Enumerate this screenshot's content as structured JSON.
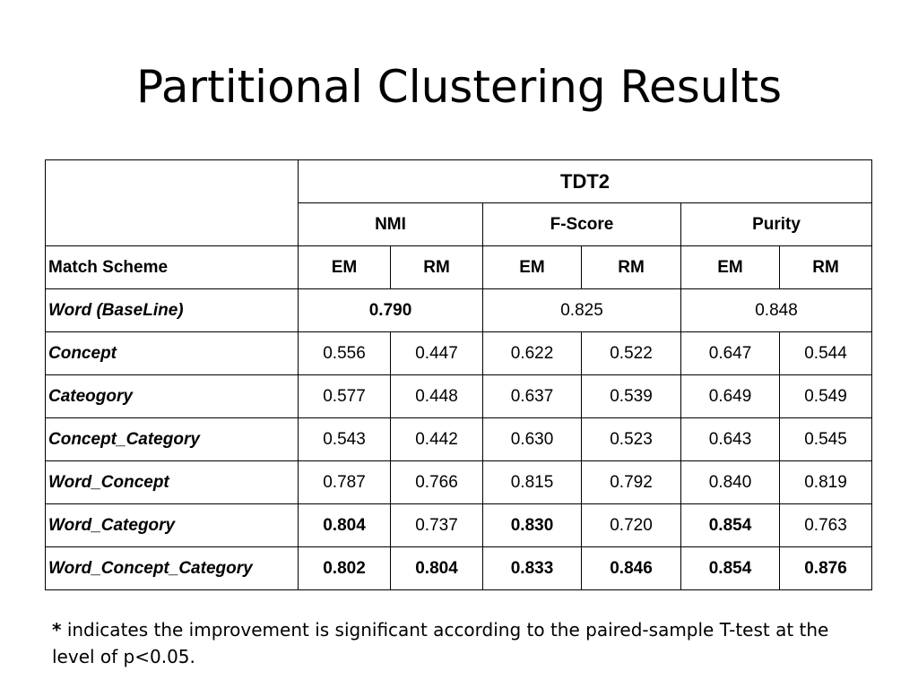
{
  "title": "Partitional Clustering Results",
  "table": {
    "dataset": "TDT2",
    "metrics": [
      "NMI",
      "F-Score",
      "Purity"
    ],
    "scheme_label": "Match Scheme",
    "subheaders": [
      "EM",
      "RM",
      "EM",
      "RM",
      "EM",
      "RM"
    ],
    "baseline": {
      "label": "Word  (BaseLine)",
      "values": [
        "0.790",
        "0.825",
        "0.848"
      ],
      "bold": [
        true,
        false,
        false
      ]
    },
    "rows": [
      {
        "label": "Concept",
        "values": [
          "0.556",
          "0.447",
          "0.622",
          "0.522",
          "0.647",
          "0.544"
        ],
        "bold": [
          false,
          false,
          false,
          false,
          false,
          false
        ]
      },
      {
        "label": "Cateogory",
        "values": [
          "0.577",
          "0.448",
          "0.637",
          "0.539",
          "0.649",
          "0.549"
        ],
        "bold": [
          false,
          false,
          false,
          false,
          false,
          false
        ]
      },
      {
        "label": "Concept_Category",
        "values": [
          "0.543",
          "0.442",
          "0.630",
          "0.523",
          "0.643",
          "0.545"
        ],
        "bold": [
          false,
          false,
          false,
          false,
          false,
          false
        ]
      },
      {
        "label": "Word_Concept",
        "values": [
          "0.787",
          "0.766",
          "0.815",
          "0.792",
          "0.840",
          "0.819"
        ],
        "bold": [
          false,
          false,
          false,
          false,
          false,
          false
        ]
      },
      {
        "label": "Word_Category",
        "values": [
          "0.804",
          "0.737",
          "0.830",
          "0.720",
          "0.854",
          "0.763"
        ],
        "bold": [
          true,
          false,
          true,
          false,
          true,
          false
        ]
      },
      {
        "label": "Word_Concept_Category",
        "values": [
          "0.802",
          "0.804",
          "0.833",
          "0.846",
          "0.854",
          "0.876"
        ],
        "bold": [
          true,
          true,
          true,
          true,
          true,
          true
        ]
      }
    ]
  },
  "footnote": {
    "marker": "*",
    "text": " indicates the improvement is significant according to the paired-sample T-test at the level of p<0.05."
  }
}
